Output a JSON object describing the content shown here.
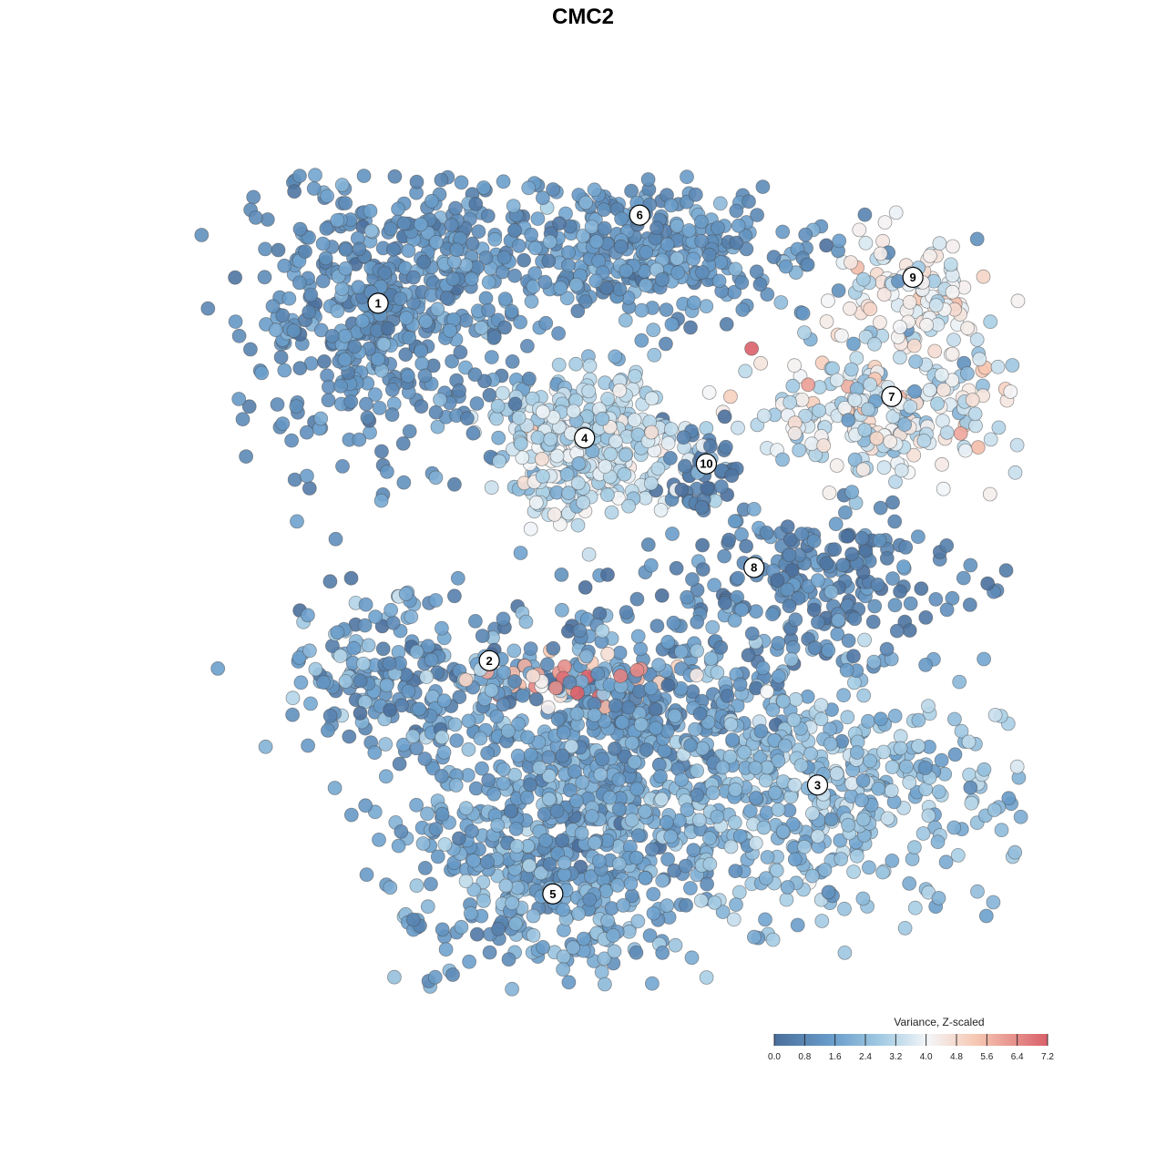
{
  "chart_data": {
    "type": "scatter",
    "title": "CMC2",
    "xlabel": "",
    "ylabel": "",
    "x_range": [
      -40,
      40
    ],
    "y_range": [
      -40,
      40
    ],
    "grid": false,
    "point_style": "filled circles with dark grey outline, semi-opaque",
    "legend": {
      "title": "Variance, Z-scaled",
      "placement": "bottom-right",
      "orientation": "horizontal colorbar",
      "min": 0.0,
      "max": 7.2,
      "ticks": [
        "0.0",
        "0.8",
        "1.6",
        "2.4",
        "3.2",
        "4.0",
        "4.8",
        "5.6",
        "6.4",
        "7.2"
      ],
      "colors": [
        "#4a6f9c",
        "#6b9fcc",
        "#a6cde4",
        "#f4f6f8",
        "#f6c7b2",
        "#d9606a"
      ]
    },
    "clusters": [
      {
        "label": "1",
        "center": [
          -21.5,
          27.0
        ],
        "sd": [
          6.5,
          7.0
        ],
        "n": 520,
        "value_mean": 1.1,
        "value_sd": 0.45
      },
      {
        "label": "6",
        "center": [
          3.0,
          32.0
        ],
        "sd": [
          9.0,
          3.5
        ],
        "n": 380,
        "value_mean": 1.3,
        "value_sd": 0.5
      },
      {
        "label": "4",
        "center": [
          -2.0,
          13.5
        ],
        "sd": [
          4.5,
          3.5
        ],
        "n": 320,
        "value_mean": 3.2,
        "value_sd": 0.6
      },
      {
        "label": "10",
        "center": [
          9.0,
          10.5
        ],
        "sd": [
          1.8,
          2.4
        ],
        "n": 50,
        "value_mean": 0.4,
        "value_sd": 0.3
      },
      {
        "label": "9",
        "center": [
          29.0,
          28.0
        ],
        "sd": [
          4.0,
          3.0
        ],
        "n": 110,
        "value_mean": 3.9,
        "value_sd": 0.6
      },
      {
        "label": "7",
        "center": [
          26.0,
          16.5
        ],
        "sd": [
          7.0,
          3.2
        ],
        "n": 260,
        "value_mean": 3.6,
        "value_sd": 0.9
      },
      {
        "label": "8",
        "center": [
          20.0,
          0.0
        ],
        "sd": [
          6.5,
          3.5
        ],
        "n": 210,
        "value_mean": 0.8,
        "value_sd": 0.5
      },
      {
        "label": "2",
        "center": [
          -19.0,
          -9.0
        ],
        "sd": [
          6.0,
          4.0
        ],
        "n": 220,
        "value_mean": 1.6,
        "value_sd": 0.8
      },
      {
        "label": "3",
        "center": [
          19.0,
          -20.0
        ],
        "sd": [
          9.0,
          6.0
        ],
        "n": 480,
        "value_mean": 2.4,
        "value_sd": 0.6
      },
      {
        "label": "5",
        "center": [
          -5.0,
          -26.0
        ],
        "sd": [
          7.0,
          7.0
        ],
        "n": 600,
        "value_mean": 1.7,
        "value_sd": 0.6
      },
      {
        "label": "",
        "center": [
          3.0,
          -12.0
        ],
        "sd": [
          7.0,
          5.0
        ],
        "n": 360,
        "value_mean": 1.3,
        "value_sd": 0.6
      },
      {
        "label": "",
        "center": [
          -3.0,
          -9.5
        ],
        "sd": [
          4.5,
          1.2
        ],
        "n": 40,
        "value_mean": 5.3,
        "value_sd": 1.0
      }
    ],
    "cluster_labels": [
      {
        "label": "1",
        "x": -21.5,
        "y": 27.0
      },
      {
        "label": "6",
        "x": 3.2,
        "y": 35.5
      },
      {
        "label": "4",
        "x": -2.0,
        "y": 14.0
      },
      {
        "label": "10",
        "x": 9.5,
        "y": 11.5
      },
      {
        "label": "9",
        "x": 29.0,
        "y": 29.5
      },
      {
        "label": "7",
        "x": 27.0,
        "y": 18.0
      },
      {
        "label": "8",
        "x": 14.0,
        "y": 1.5
      },
      {
        "label": "2",
        "x": -11.0,
        "y": -7.5
      },
      {
        "label": "3",
        "x": 20.0,
        "y": -19.5
      },
      {
        "label": "5",
        "x": -5.0,
        "y": -30.0
      }
    ]
  }
}
